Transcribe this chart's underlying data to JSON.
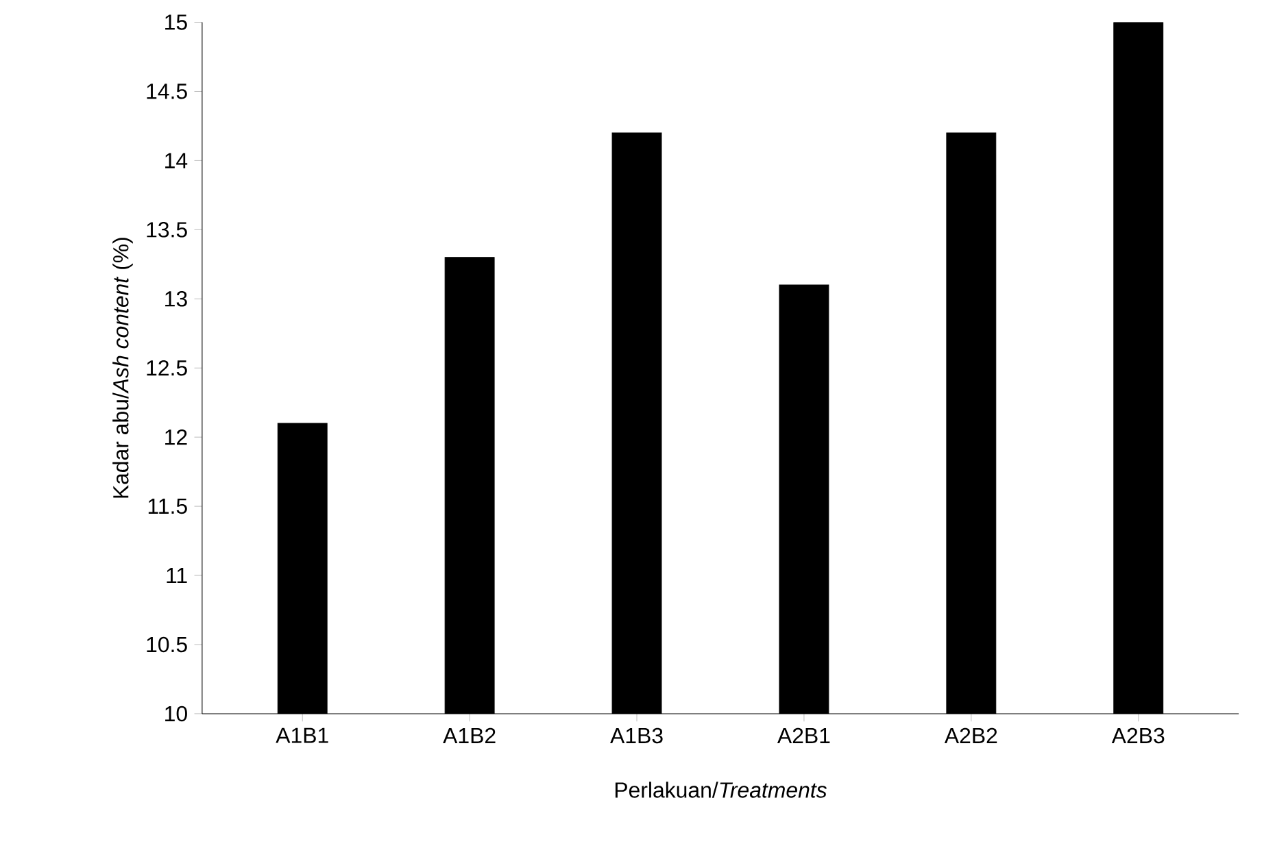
{
  "chart_data": {
    "type": "bar",
    "xlabel": "Perlakuan/*Treatments*",
    "ylabel": "Kadar abu/*Ash content* (%)",
    "categories": [
      "A1B1",
      "A1B2",
      "A1B3",
      "A2B1",
      "A2B2",
      "A2B3"
    ],
    "values": [
      12.1,
      13.3,
      14.2,
      13.1,
      14.2,
      15.0
    ],
    "color": "#000000",
    "ylim": [
      10,
      15
    ],
    "yticks": [
      10,
      {
        "value": 10.5,
        "label": "10.5"
      },
      11,
      {
        "value": 11.5,
        "label": "11.5"
      },
      12,
      {
        "value": 12.5,
        "label": "12.5"
      },
      13,
      {
        "value": 13.5,
        "label": "13.5"
      },
      14,
      {
        "value": 14.5,
        "label": "14.5"
      },
      15
    ],
    "grid": false
  }
}
